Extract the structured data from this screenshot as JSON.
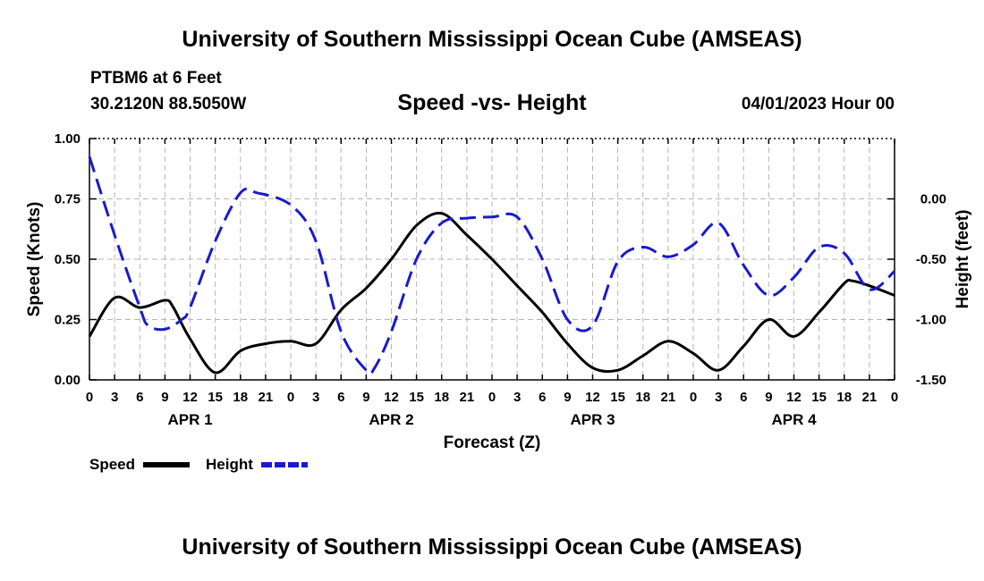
{
  "header": {
    "title": "University of Southern Mississippi Ocean Cube (AMSEAS)",
    "station": "PTBM6 at 6 Feet",
    "coords": "30.2120N  88.5050W",
    "subtitle": "Speed -vs- Height",
    "datetime": "04/01/2023 Hour 00"
  },
  "footer": {
    "title": "University of Southern Mississippi Ocean Cube (AMSEAS)"
  },
  "chart_data": {
    "type": "line",
    "xlabel": "Forecast (Z)",
    "ylabel": "Speed (Knots)",
    "y2label": "Height (feet)",
    "x_hours_range": [
      0,
      96
    ],
    "x_tick_labels": [
      "0",
      "3",
      "6",
      "9",
      "12",
      "15",
      "18",
      "21",
      "0",
      "3",
      "6",
      "9",
      "12",
      "15",
      "18",
      "21",
      "0",
      "3",
      "6",
      "9",
      "12",
      "15",
      "18",
      "21",
      "0",
      "3",
      "6",
      "9",
      "12",
      "15",
      "18",
      "21",
      "0"
    ],
    "day_labels": [
      "APR 1",
      "APR 2",
      "APR 3",
      "APR 4"
    ],
    "ylim": [
      0,
      1
    ],
    "y_ticks": [
      "0.00",
      "0.25",
      "0.50",
      "0.75",
      "1.00"
    ],
    "y2lim": [
      -1.5,
      0.5
    ],
    "y2_ticks": [
      "0.00",
      "-0.50",
      "-1.00",
      "-1.50"
    ],
    "grid": true,
    "legend": [
      {
        "name": "Speed",
        "color": "#000000",
        "dash": "solid"
      },
      {
        "name": "Height",
        "color": "#1a1acc",
        "dash": "dashed"
      }
    ],
    "series": [
      {
        "name": "Speed",
        "axis": "left",
        "color": "#000000",
        "x": [
          0,
          3,
          6,
          9,
          10,
          12,
          15,
          18,
          21,
          24,
          27,
          30,
          33,
          36,
          39,
          42,
          45,
          48,
          51,
          54,
          57,
          60,
          63,
          66,
          69,
          72,
          75,
          78,
          81,
          84,
          87,
          90,
          91,
          93,
          96
        ],
        "values": [
          0.18,
          0.34,
          0.3,
          0.33,
          0.3,
          0.17,
          0.03,
          0.12,
          0.15,
          0.16,
          0.15,
          0.29,
          0.38,
          0.5,
          0.64,
          0.69,
          0.6,
          0.5,
          0.39,
          0.28,
          0.15,
          0.05,
          0.04,
          0.1,
          0.16,
          0.11,
          0.04,
          0.14,
          0.25,
          0.18,
          0.28,
          0.4,
          0.41,
          0.39,
          0.35
        ]
      },
      {
        "name": "Height",
        "axis": "right",
        "color": "#1a1acc",
        "x": [
          0,
          3,
          6,
          7,
          9,
          11,
          12,
          15,
          18,
          20,
          24,
          27,
          30,
          33,
          34,
          36,
          39,
          42,
          45,
          48,
          51,
          54,
          57,
          60,
          63,
          66,
          69,
          72,
          75,
          78,
          81,
          84,
          87,
          90,
          93,
          96
        ],
        "values": [
          0.35,
          -0.3,
          -0.9,
          -1.05,
          -1.08,
          -1.0,
          -0.9,
          -0.35,
          0.05,
          0.05,
          -0.05,
          -0.35,
          -1.1,
          -1.42,
          -1.4,
          -1.1,
          -0.5,
          -0.2,
          -0.16,
          -0.15,
          -0.15,
          -0.5,
          -1.0,
          -1.05,
          -0.52,
          -0.4,
          -0.48,
          -0.38,
          -0.2,
          -0.55,
          -0.8,
          -0.65,
          -0.4,
          -0.45,
          -0.75,
          -0.6
        ]
      }
    ]
  }
}
